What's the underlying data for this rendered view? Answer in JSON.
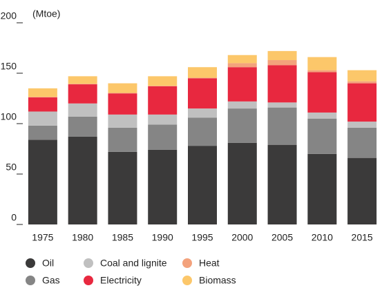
{
  "chart_data": {
    "type": "stacked-bar",
    "y_label": "(Mtoe)",
    "categories": [
      "1975",
      "1980",
      "1985",
      "1990",
      "1995",
      "2000",
      "2005",
      "2010",
      "2015"
    ],
    "series": [
      {
        "name": "Oil",
        "color": "#3b3a3a",
        "values": [
          84,
          87,
          72,
          74,
          78,
          81,
          79,
          70,
          66
        ]
      },
      {
        "name": "Gas",
        "color": "#858585",
        "values": [
          14,
          20,
          24,
          25,
          28,
          34,
          37,
          35,
          30
        ]
      },
      {
        "name": "Coal and lignite",
        "color": "#c0c0c0",
        "values": [
          14,
          13,
          13,
          10,
          9,
          7,
          5,
          6,
          6
        ]
      },
      {
        "name": "Electricity",
        "color": "#e8283f",
        "values": [
          14,
          19,
          21,
          28,
          30,
          34,
          37,
          40,
          38
        ]
      },
      {
        "name": "Heat",
        "color": "#f3a27c",
        "values": [
          0.5,
          0.5,
          0.5,
          0.5,
          0.5,
          4,
          5,
          2,
          2
        ]
      },
      {
        "name": "Biomass",
        "color": "#fcc76a",
        "values": [
          8.5,
          7.5,
          9.5,
          9.5,
          10.5,
          8,
          9,
          13,
          11
        ]
      }
    ],
    "ylim": [
      0,
      200
    ],
    "yticks": [
      0,
      50,
      100,
      150,
      200
    ]
  }
}
